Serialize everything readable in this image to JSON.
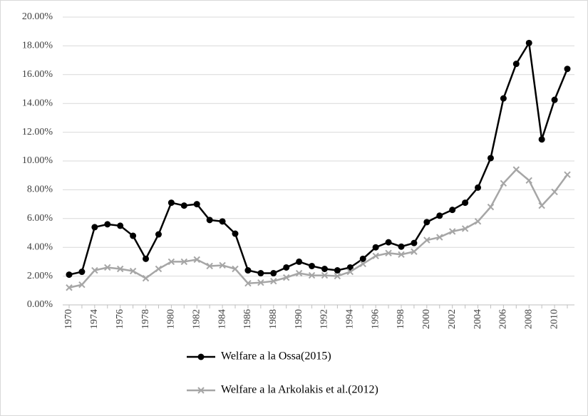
{
  "chart_data": {
    "type": "line",
    "categories": [
      "1970",
      null,
      "1974",
      null,
      "1976",
      null,
      "1978",
      null,
      "1980",
      null,
      "1982",
      null,
      "1984",
      null,
      "1986",
      null,
      "1988",
      null,
      "1990",
      null,
      "1992",
      null,
      "1994",
      null,
      "1996",
      null,
      "1998",
      null,
      "2000",
      null,
      "2002",
      null,
      "2004",
      null,
      "2006",
      null,
      "2008",
      null,
      "2010",
      null
    ],
    "series": [
      {
        "name": "Welfare a la Ossa(2015)",
        "color": "#000000",
        "marker": "circle",
        "values": [
          2.1,
          2.3,
          5.4,
          5.6,
          5.5,
          4.8,
          3.2,
          4.9,
          7.1,
          6.9,
          7.0,
          5.9,
          5.8,
          4.95,
          2.4,
          2.2,
          2.2,
          2.6,
          3.0,
          2.7,
          2.5,
          2.4,
          2.6,
          3.2,
          4.0,
          4.35,
          4.05,
          4.3,
          5.75,
          6.2,
          6.6,
          7.1,
          8.15,
          10.2,
          14.35,
          16.75,
          18.2,
          11.5,
          14.25,
          16.4
        ]
      },
      {
        "name": "Welfare a la Arkolakis et al.(2012)",
        "color": "#a6a6a6",
        "marker": "x",
        "values": [
          1.2,
          1.4,
          2.4,
          2.6,
          2.5,
          2.35,
          1.85,
          2.5,
          3.0,
          3.0,
          3.15,
          2.7,
          2.75,
          2.5,
          1.5,
          1.55,
          1.65,
          1.9,
          2.2,
          2.05,
          2.05,
          2.0,
          2.3,
          2.85,
          3.4,
          3.6,
          3.5,
          3.7,
          4.5,
          4.7,
          5.1,
          5.3,
          5.8,
          6.8,
          8.45,
          9.4,
          8.65,
          6.9,
          7.85,
          9.05
        ]
      }
    ],
    "ylim": [
      0,
      20
    ],
    "yticks": [
      {
        "value": 0,
        "label": "0.00%"
      },
      {
        "value": 2,
        "label": "2.00%"
      },
      {
        "value": 4,
        "label": "4.00%"
      },
      {
        "value": 6,
        "label": "6.00%"
      },
      {
        "value": 8,
        "label": "8.00%"
      },
      {
        "value": 10,
        "label": "10.00%"
      },
      {
        "value": 12,
        "label": "12.00%"
      },
      {
        "value": 14,
        "label": "14.00%"
      },
      {
        "value": 16,
        "label": "16.00%"
      },
      {
        "value": 18,
        "label": "18.00%"
      },
      {
        "value": 20,
        "label": "20.00%"
      }
    ],
    "grid": true,
    "legend": "bottom"
  }
}
